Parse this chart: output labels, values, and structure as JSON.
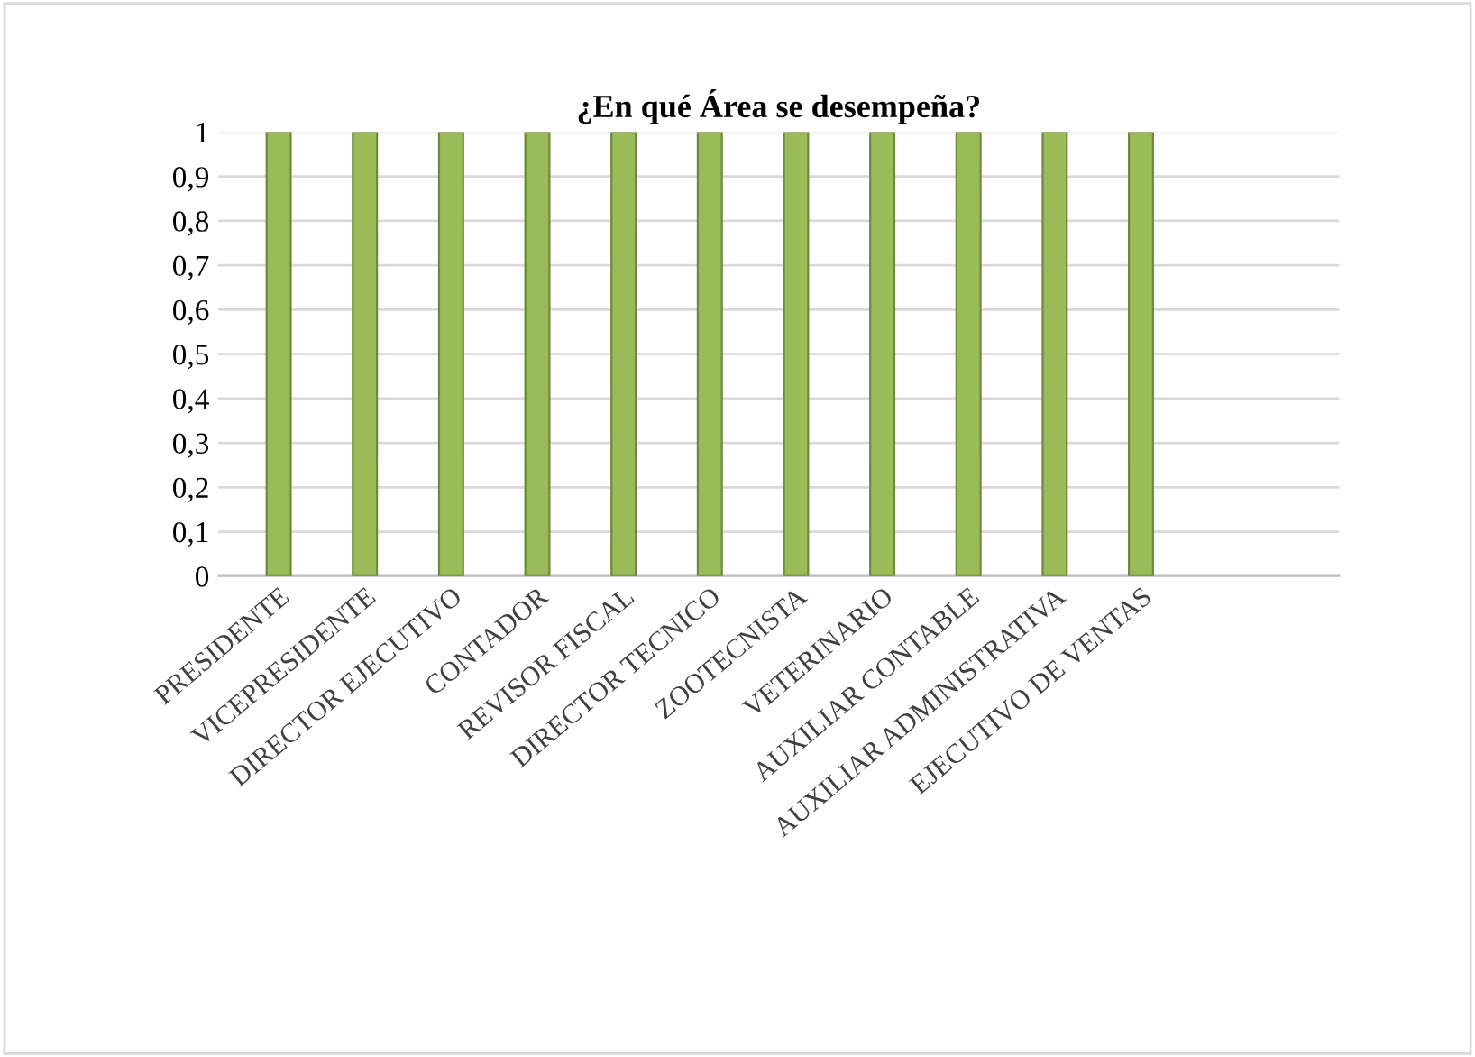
{
  "chart_data": {
    "type": "bar",
    "title": "¿En qué Área se desempeña?",
    "categories": [
      "PRESIDENTE",
      "VICEPRESIDENTE",
      "DIRECTOR EJECUTIVO",
      "CONTADOR",
      "REVISOR FISCAL",
      "DIRECTOR TECNICO",
      "ZOOTECNISTA",
      "VETERINARIO",
      "AUXILIAR CONTABLE",
      "AUXILIAR ADMINISTRATIVA",
      "EJECUTIVO DE VENTAS"
    ],
    "values": [
      1,
      1,
      1,
      1,
      1,
      1,
      1,
      1,
      1,
      1,
      1
    ],
    "color": "#9bbb59",
    "ylim": [
      0,
      1
    ],
    "yticks": [
      0,
      {
        "value": 0.1,
        "label": "0,1"
      },
      {
        "value": 0.2,
        "label": "0,2"
      },
      {
        "value": 0.3,
        "label": "0,3"
      },
      {
        "value": 0.4,
        "label": "0,4"
      },
      {
        "value": 0.5,
        "label": "0,5"
      },
      {
        "value": 0.6,
        "label": "0,6"
      },
      {
        "value": 0.7,
        "label": "0,7"
      },
      {
        "value": 0.8,
        "label": "0,8"
      },
      {
        "value": 0.9,
        "label": "0,9"
      },
      1
    ],
    "grid": "y"
  }
}
